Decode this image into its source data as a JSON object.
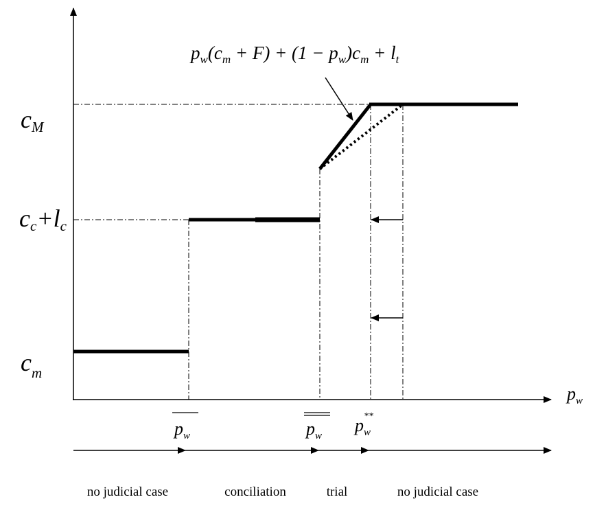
{
  "formula": [
    [
      "p",
      "w"
    ],
    [
      "(c",
      "m"
    ],
    [
      " + F) + (1 − p",
      "w"
    ],
    [
      ")c",
      "m"
    ],
    [
      " + l",
      "t"
    ]
  ],
  "y_labels": {
    "c_M": [
      "c",
      "M"
    ],
    "cc_lc": [
      [
        "c",
        "c"
      ],
      [
        "+l",
        "c"
      ]
    ],
    "c_m": [
      "c",
      "m"
    ]
  },
  "x_axis_label": [
    "p",
    "w"
  ],
  "x_marks": {
    "p_bar": [
      "p",
      "w"
    ],
    "p_double_bar": [
      "p",
      "w"
    ],
    "p_star": [
      "p",
      "w",
      "**"
    ]
  },
  "regions": [
    "no judicial case",
    "conciliation",
    "trial",
    "no judicial case"
  ]
}
